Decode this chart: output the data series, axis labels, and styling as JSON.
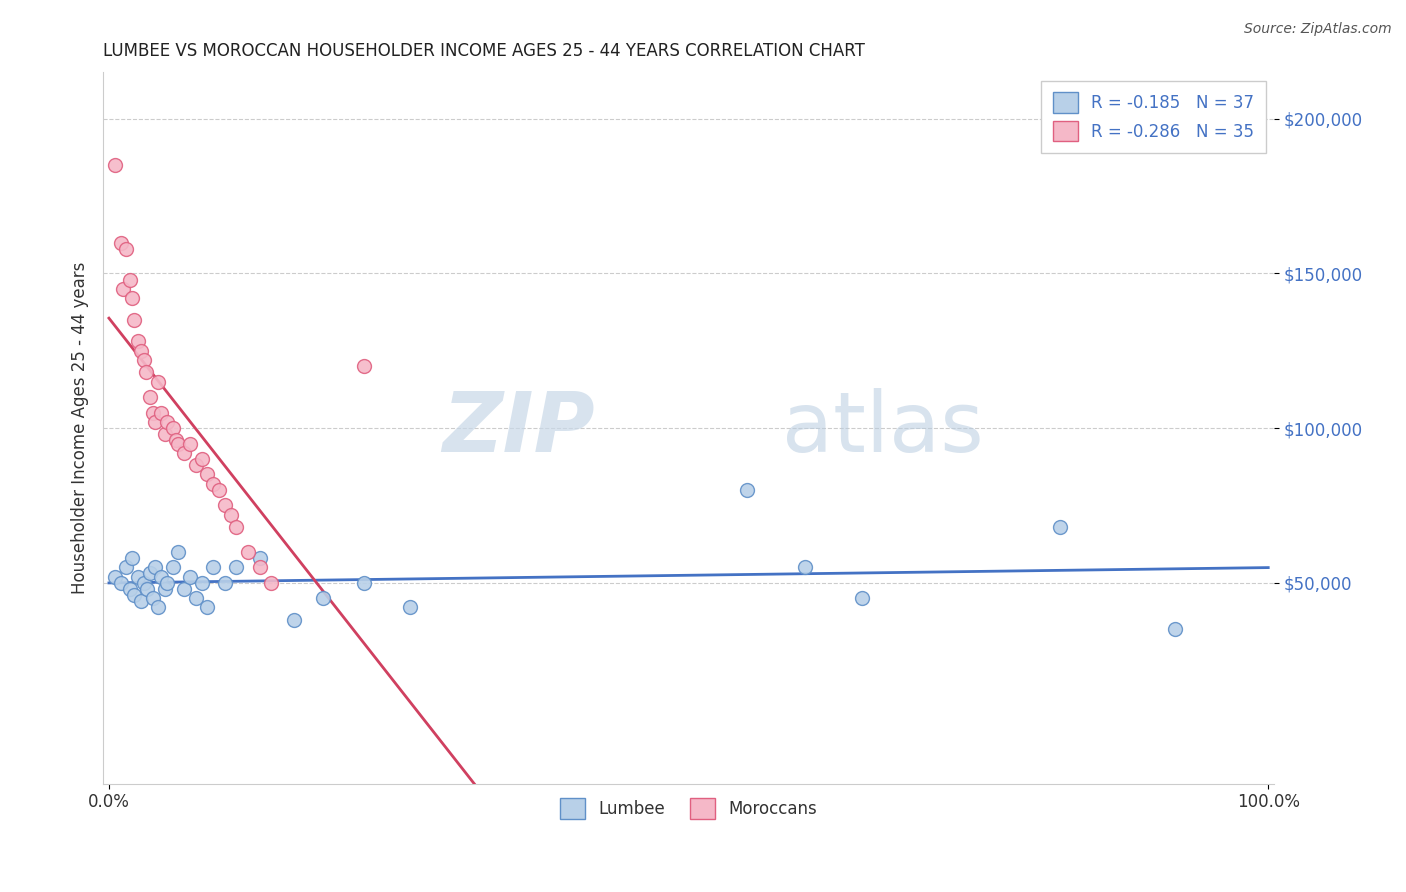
{
  "title": "LUMBEE VS MOROCCAN HOUSEHOLDER INCOME AGES 25 - 44 YEARS CORRELATION CHART",
  "source": "Source: ZipAtlas.com",
  "ylabel": "Householder Income Ages 25 - 44 years",
  "xlim": [
    -0.005,
    1.005
  ],
  "ylim": [
    -15000,
    215000
  ],
  "yticks": [
    50000,
    100000,
    150000,
    200000
  ],
  "ytick_labels": [
    "$50,000",
    "$100,000",
    "$150,000",
    "$200,000"
  ],
  "xticks": [
    0.0,
    1.0
  ],
  "xtick_labels": [
    "0.0%",
    "100.0%"
  ],
  "lumbee_color": "#b8d0e8",
  "moroccan_color": "#f5b8c8",
  "lumbee_edge_color": "#6090c8",
  "moroccan_edge_color": "#e06080",
  "lumbee_line_color": "#4472c4",
  "moroccan_line_color": "#d04060",
  "legend_r_lumbee": "R = -0.185",
  "legend_n_lumbee": "N = 37",
  "legend_r_moroccan": "R = -0.286",
  "legend_n_moroccan": "N = 35",
  "lumbee_x": [
    0.005,
    0.01,
    0.015,
    0.018,
    0.02,
    0.022,
    0.025,
    0.028,
    0.03,
    0.033,
    0.035,
    0.038,
    0.04,
    0.042,
    0.045,
    0.048,
    0.05,
    0.055,
    0.06,
    0.065,
    0.07,
    0.075,
    0.08,
    0.085,
    0.09,
    0.1,
    0.11,
    0.13,
    0.16,
    0.185,
    0.22,
    0.26,
    0.55,
    0.6,
    0.65,
    0.82,
    0.92
  ],
  "lumbee_y": [
    52000,
    50000,
    55000,
    48000,
    58000,
    46000,
    52000,
    44000,
    50000,
    48000,
    53000,
    45000,
    55000,
    42000,
    52000,
    48000,
    50000,
    55000,
    60000,
    48000,
    52000,
    45000,
    50000,
    42000,
    55000,
    50000,
    55000,
    58000,
    38000,
    45000,
    50000,
    42000,
    80000,
    55000,
    45000,
    68000,
    35000
  ],
  "moroccan_x": [
    0.005,
    0.01,
    0.012,
    0.015,
    0.018,
    0.02,
    0.022,
    0.025,
    0.028,
    0.03,
    0.032,
    0.035,
    0.038,
    0.04,
    0.042,
    0.045,
    0.048,
    0.05,
    0.055,
    0.058,
    0.06,
    0.065,
    0.07,
    0.075,
    0.08,
    0.085,
    0.09,
    0.095,
    0.1,
    0.105,
    0.11,
    0.12,
    0.13,
    0.14,
    0.22
  ],
  "moroccan_y": [
    185000,
    160000,
    145000,
    158000,
    148000,
    142000,
    135000,
    128000,
    125000,
    122000,
    118000,
    110000,
    105000,
    102000,
    115000,
    105000,
    98000,
    102000,
    100000,
    96000,
    95000,
    92000,
    95000,
    88000,
    90000,
    85000,
    82000,
    80000,
    75000,
    72000,
    68000,
    60000,
    55000,
    50000,
    120000
  ],
  "watermark_zip": "ZIP",
  "watermark_atlas": "atlas",
  "background_color": "#ffffff",
  "grid_color": "#cccccc",
  "ytick_color": "#4472c4"
}
